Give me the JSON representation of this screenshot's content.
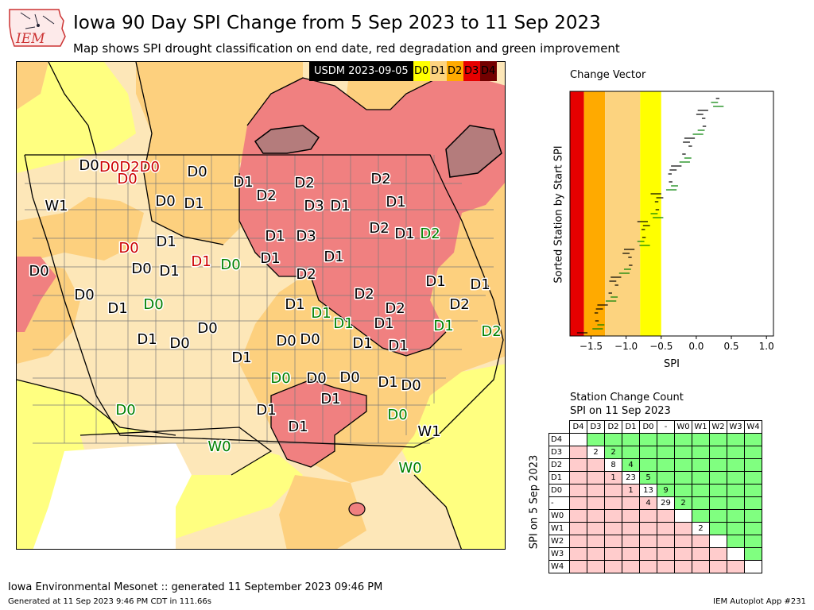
{
  "header": {
    "title": "Iowa 90 Day SPI Change from 5 Sep 2023 to 11 Sep 2023",
    "subtitle": "Map shows SPI drought classification on end date, red degradation and green improvement",
    "logo_text": "IEM"
  },
  "legend": {
    "label": "USDM 2023-09-05",
    "items": [
      {
        "code": "D0",
        "color": "#ffff00"
      },
      {
        "code": "D1",
        "color": "#fcd37f"
      },
      {
        "code": "D2",
        "color": "#ffaa00"
      },
      {
        "code": "D3",
        "color": "#e60000"
      },
      {
        "code": "D4",
        "color": "#730000"
      }
    ]
  },
  "colors": {
    "d0_fill": "#ffff80",
    "d0_light": "#fde7b8",
    "d1_fill": "#fdd07e",
    "d2_fill": "#f08080",
    "d3_fill": "#b47c7c",
    "county_line": "#7a7a7a",
    "improve": "#008000",
    "degrade": "#e00000",
    "improve_cell": "#80ff80",
    "degrade_cell": "#ffcccc"
  },
  "map_labels": [
    {
      "text": "D0",
      "x": 112,
      "y": 207,
      "color": "#000000"
    },
    {
      "text": "D0D2D0",
      "x": 163,
      "y": 209,
      "color": "#cc0000"
    },
    {
      "text": "D0",
      "x": 160,
      "y": 224,
      "color": "#cc0000"
    },
    {
      "text": "D0",
      "x": 248,
      "y": 215,
      "color": "#000000"
    },
    {
      "text": "D1",
      "x": 306,
      "y": 228,
      "color": "#000000"
    },
    {
      "text": "D2",
      "x": 383,
      "y": 229,
      "color": "#000000"
    },
    {
      "text": "D2",
      "x": 479,
      "y": 224,
      "color": "#000000"
    },
    {
      "text": "W1",
      "x": 71,
      "y": 258,
      "color": "#000000"
    },
    {
      "text": "D0",
      "x": 208,
      "y": 252,
      "color": "#000000"
    },
    {
      "text": "D1",
      "x": 244,
      "y": 255,
      "color": "#000000"
    },
    {
      "text": "D2",
      "x": 335,
      "y": 245,
      "color": "#000000"
    },
    {
      "text": "D3",
      "x": 395,
      "y": 258,
      "color": "#000000"
    },
    {
      "text": "D1",
      "x": 428,
      "y": 258,
      "color": "#000000"
    },
    {
      "text": "D1",
      "x": 498,
      "y": 253,
      "color": "#000000"
    },
    {
      "text": "D2",
      "x": 477,
      "y": 286,
      "color": "#000000"
    },
    {
      "text": "D1",
      "x": 509,
      "y": 293,
      "color": "#000000"
    },
    {
      "text": "D2",
      "x": 541,
      "y": 293,
      "color": "#008000"
    },
    {
      "text": "D1",
      "x": 209,
      "y": 303,
      "color": "#000000"
    },
    {
      "text": "D1",
      "x": 346,
      "y": 296,
      "color": "#000000"
    },
    {
      "text": "D3",
      "x": 385,
      "y": 296,
      "color": "#000000"
    },
    {
      "text": "D0",
      "x": 162,
      "y": 311,
      "color": "#cc0000"
    },
    {
      "text": "D1",
      "x": 420,
      "y": 322,
      "color": "#000000"
    },
    {
      "text": "D1",
      "x": 340,
      "y": 324,
      "color": "#000000"
    },
    {
      "text": "D0",
      "x": 49,
      "y": 340,
      "color": "#000000"
    },
    {
      "text": "D0",
      "x": 178,
      "y": 337,
      "color": "#000000"
    },
    {
      "text": "D1",
      "x": 213,
      "y": 340,
      "color": "#000000"
    },
    {
      "text": "D1",
      "x": 253,
      "y": 328,
      "color": "#cc0000"
    },
    {
      "text": "D0",
      "x": 290,
      "y": 332,
      "color": "#008000"
    },
    {
      "text": "D2",
      "x": 385,
      "y": 344,
      "color": "#000000"
    },
    {
      "text": "D1",
      "x": 548,
      "y": 353,
      "color": "#000000"
    },
    {
      "text": "D1",
      "x": 604,
      "y": 357,
      "color": "#000000"
    },
    {
      "text": "D0",
      "x": 106,
      "y": 370,
      "color": "#000000"
    },
    {
      "text": "D1",
      "x": 148,
      "y": 387,
      "color": "#000000"
    },
    {
      "text": "D0",
      "x": 193,
      "y": 382,
      "color": "#008000"
    },
    {
      "text": "D2",
      "x": 458,
      "y": 369,
      "color": "#000000"
    },
    {
      "text": "D1",
      "x": 371,
      "y": 382,
      "color": "#000000"
    },
    {
      "text": "D1",
      "x": 404,
      "y": 393,
      "color": "#008000"
    },
    {
      "text": "D2",
      "x": 497,
      "y": 387,
      "color": "#000000"
    },
    {
      "text": "D2",
      "x": 578,
      "y": 382,
      "color": "#000000"
    },
    {
      "text": "D0",
      "x": 261,
      "y": 412,
      "color": "#000000"
    },
    {
      "text": "D1",
      "x": 432,
      "y": 406,
      "color": "#008000"
    },
    {
      "text": "D1",
      "x": 483,
      "y": 406,
      "color": "#000000"
    },
    {
      "text": "D1",
      "x": 558,
      "y": 409,
      "color": "#008000"
    },
    {
      "text": "D2",
      "x": 618,
      "y": 416,
      "color": "#008000"
    },
    {
      "text": "D1",
      "x": 185,
      "y": 426,
      "color": "#000000"
    },
    {
      "text": "D0",
      "x": 226,
      "y": 431,
      "color": "#000000"
    },
    {
      "text": "D0",
      "x": 360,
      "y": 428,
      "color": "#000000"
    },
    {
      "text": "D0",
      "x": 390,
      "y": 426,
      "color": "#000000"
    },
    {
      "text": "D1",
      "x": 456,
      "y": 431,
      "color": "#000000"
    },
    {
      "text": "D1",
      "x": 501,
      "y": 434,
      "color": "#000000"
    },
    {
      "text": "D1",
      "x": 304,
      "y": 449,
      "color": "#000000"
    },
    {
      "text": "D0",
      "x": 353,
      "y": 475,
      "color": "#008000"
    },
    {
      "text": "D0",
      "x": 398,
      "y": 475,
      "color": "#000000"
    },
    {
      "text": "D0",
      "x": 440,
      "y": 474,
      "color": "#000000"
    },
    {
      "text": "D1",
      "x": 488,
      "y": 480,
      "color": "#000000"
    },
    {
      "text": "D0",
      "x": 517,
      "y": 484,
      "color": "#000000"
    },
    {
      "text": "D1",
      "x": 416,
      "y": 501,
      "color": "#000000"
    },
    {
      "text": "D0",
      "x": 158,
      "y": 515,
      "color": "#008000"
    },
    {
      "text": "D1",
      "x": 335,
      "y": 515,
      "color": "#000000"
    },
    {
      "text": "D0",
      "x": 500,
      "y": 521,
      "color": "#008000"
    },
    {
      "text": "D1",
      "x": 375,
      "y": 536,
      "color": "#000000"
    },
    {
      "text": "W1",
      "x": 540,
      "y": 542,
      "color": "#000000"
    },
    {
      "text": "W0",
      "x": 276,
      "y": 561,
      "color": "#008000"
    },
    {
      "text": "W0",
      "x": 516,
      "y": 588,
      "color": "#008000"
    }
  ],
  "change_vector": {
    "title": "Change Vector",
    "ylabel": "Sorted Station by Start SPI",
    "xlabel": "SPI",
    "xlim": [
      -1.8,
      1.1
    ],
    "xticks": [
      "−1.5",
      "−1.0",
      "−0.5",
      "0.0",
      "0.5",
      "1.0"
    ],
    "xtick_values": [
      -1.5,
      -1.0,
      -0.5,
      0.0,
      0.5,
      1.0
    ],
    "bands": [
      {
        "from": -1.8,
        "to": -1.6,
        "color": "#e60000"
      },
      {
        "from": -1.6,
        "to": -1.3,
        "color": "#ffaa00"
      },
      {
        "from": -1.3,
        "to": -0.8,
        "color": "#fcd37f"
      },
      {
        "from": -0.8,
        "to": -0.5,
        "color": "#ffff00"
      }
    ]
  },
  "chart_data": {
    "type": "table",
    "title": "Station Change Count",
    "subtitle": "SPI on 11 Sep 2023",
    "ylabel": "SPI on 5 Sep 2023",
    "columns": [
      "D4",
      "D3",
      "D2",
      "D1",
      "D0",
      "-",
      "W0",
      "W1",
      "W2",
      "W3",
      "W4"
    ],
    "rows": [
      "D4",
      "D3",
      "D2",
      "D1",
      "D0",
      "-",
      "W0",
      "W1",
      "W2",
      "W3",
      "W4"
    ],
    "values": [
      [
        "",
        "",
        "",
        "",
        "",
        "",
        "",
        "",
        "",
        "",
        ""
      ],
      [
        "",
        "2",
        "2",
        "",
        "",
        "",
        "",
        "",
        "",
        "",
        ""
      ],
      [
        "",
        "",
        "8",
        "4",
        "",
        "",
        "",
        "",
        "",
        "",
        ""
      ],
      [
        "",
        "",
        "1",
        "23",
        "5",
        "",
        "",
        "",
        "",
        "",
        ""
      ],
      [
        "",
        "",
        "",
        "1",
        "13",
        "9",
        "",
        "",
        "",
        "",
        ""
      ],
      [
        "",
        "",
        "",
        "",
        "4",
        "29",
        "2",
        "",
        "",
        "",
        ""
      ],
      [
        "",
        "",
        "",
        "",
        "",
        "",
        "",
        "",
        "",
        "",
        ""
      ],
      [
        "",
        "",
        "",
        "",
        "",
        "",
        "",
        "2",
        "",
        "",
        ""
      ],
      [
        "",
        "",
        "",
        "",
        "",
        "",
        "",
        "",
        "",
        "",
        ""
      ],
      [
        "",
        "",
        "",
        "",
        "",
        "",
        "",
        "",
        "",
        "",
        ""
      ],
      [
        "",
        "",
        "",
        "",
        "",
        "",
        "",
        "",
        "",
        "",
        ""
      ]
    ]
  },
  "footer": {
    "left": "Iowa Environmental Mesonet :: generated 11 September 2023 09:46 PM",
    "generated": "Generated at 11 Sep 2023 9:46 PM CDT in 111.66s",
    "app": "IEM Autoplot App #231"
  }
}
